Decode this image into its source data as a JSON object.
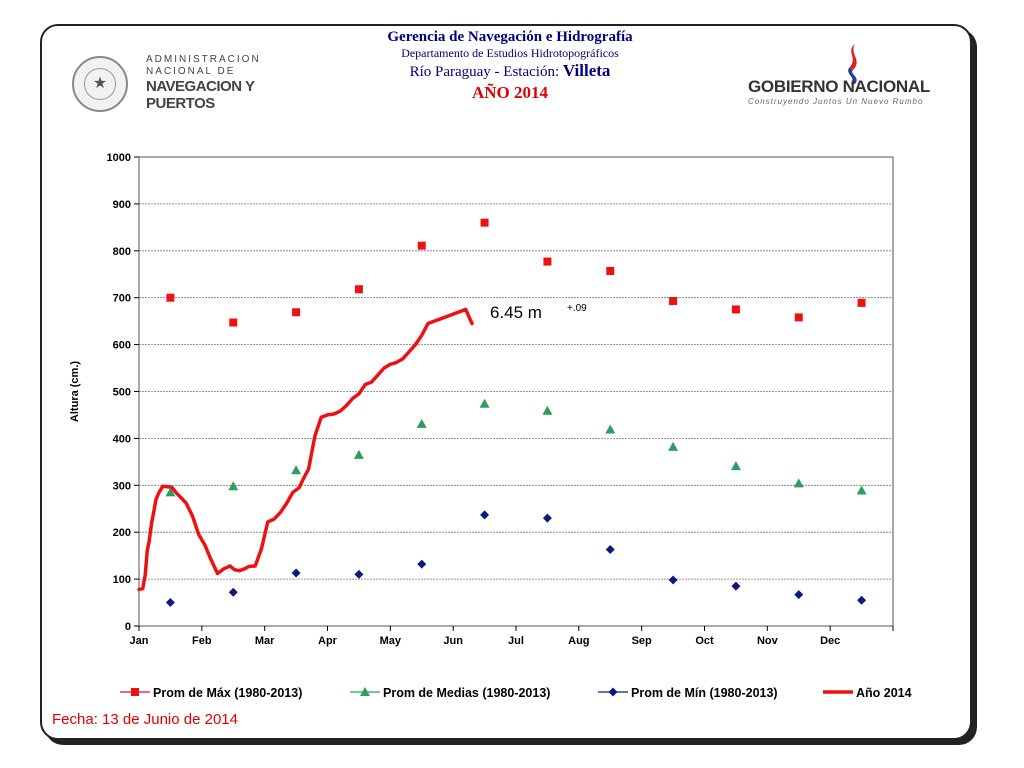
{
  "header": {
    "line1": "Gerencia de Navegación e Hidrografía",
    "line2": "Departamento de Estudios Hidrotopográficos",
    "line3_prefix": "Río Paraguay  -  Estación: ",
    "station": "Villeta",
    "year": "AÑO 2014"
  },
  "logo_left": {
    "line1": "ADMINISTRACION",
    "line2": "NACIONAL DE",
    "line3": "NAVEGACION Y",
    "line4": "PUERTOS"
  },
  "logo_right": {
    "line1": "GOBIERNO NACIONAL",
    "line2": "Construyendo Juntos Un Nuevo Rumbo"
  },
  "footer": {
    "fecha": "Fecha:  13  de Junio de 2014"
  },
  "colors": {
    "max": "#ee1111",
    "mean": "#2e9e5e",
    "min": "#0a1a7a",
    "year": "#ee1111",
    "accent": "#000080"
  },
  "chart_data": {
    "type": "line",
    "ylabel": "Altura (cm.)",
    "xlabel": "",
    "ylim": [
      0,
      1000
    ],
    "yticks": [
      0,
      100,
      200,
      300,
      400,
      500,
      600,
      700,
      800,
      900,
      1000
    ],
    "months": [
      "Jan",
      "Feb",
      "Mar",
      "Apr",
      "May",
      "Jun",
      "Jul",
      "Aug",
      "Sep",
      "Oct",
      "Nov",
      "Dec"
    ],
    "grid": true,
    "legend_position": "bottom",
    "annotation": {
      "text": "6.45 m",
      "superscript": "+.09"
    },
    "series": [
      {
        "name": "Prom de Máx (1980-2013)",
        "marker": "square",
        "x": [
          0.5,
          1.5,
          2.5,
          3.5,
          4.5,
          5.5,
          6.5,
          7.5,
          8.5,
          9.5,
          10.5,
          11.5
        ],
        "values": [
          700,
          647,
          669,
          718,
          811,
          860,
          777,
          757,
          693,
          675,
          658,
          689
        ]
      },
      {
        "name": "Prom de Medias (1980-2013)",
        "marker": "triangle",
        "x": [
          0.5,
          1.5,
          2.5,
          3.5,
          4.5,
          5.5,
          6.5,
          7.5,
          8.5,
          9.5,
          10.5,
          11.5
        ],
        "values": [
          285,
          298,
          332,
          365,
          431,
          474,
          459,
          419,
          382,
          341,
          304,
          289
        ]
      },
      {
        "name": "Prom de Mín (1980-2013)",
        "marker": "diamond",
        "x": [
          0.5,
          1.5,
          2.5,
          3.5,
          4.5,
          5.5,
          6.5,
          7.5,
          8.5,
          9.5,
          10.5,
          11.5
        ],
        "values": [
          50,
          72,
          113,
          110,
          132,
          237,
          230,
          163,
          98,
          85,
          67,
          55
        ]
      },
      {
        "name": "Año 2014",
        "marker": "none",
        "x": [
          0,
          0.06,
          0.1,
          0.13,
          0.16,
          0.2,
          0.23,
          0.27,
          0.32,
          0.38,
          0.45,
          0.52,
          0.6,
          0.68,
          0.75,
          0.85,
          0.95,
          1.05,
          1.15,
          1.25,
          1.35,
          1.45,
          1.52,
          1.6,
          1.68,
          1.75,
          1.85,
          1.95,
          2.05,
          2.15,
          2.25,
          2.35,
          2.45,
          2.5,
          2.55,
          2.62,
          2.7,
          2.8,
          2.9,
          3.0,
          3.1,
          3.2,
          3.3,
          3.4,
          3.5,
          3.6,
          3.7,
          3.8,
          3.9,
          4.0,
          4.1,
          4.2,
          4.3,
          4.4,
          4.5,
          4.6,
          4.7,
          4.8,
          4.9,
          5.0,
          5.1,
          5.2,
          5.3
        ],
        "values": [
          78,
          80,
          110,
          160,
          180,
          220,
          240,
          270,
          285,
          298,
          297,
          296,
          283,
          272,
          262,
          235,
          195,
          172,
          140,
          112,
          122,
          128,
          120,
          118,
          122,
          127,
          128,
          165,
          222,
          228,
          242,
          262,
          285,
          290,
          295,
          315,
          335,
          405,
          445,
          450,
          452,
          458,
          470,
          485,
          495,
          515,
          520,
          535,
          550,
          558,
          562,
          570,
          585,
          600,
          620,
          645,
          650,
          655,
          660,
          665,
          670,
          675,
          645
        ]
      }
    ]
  }
}
